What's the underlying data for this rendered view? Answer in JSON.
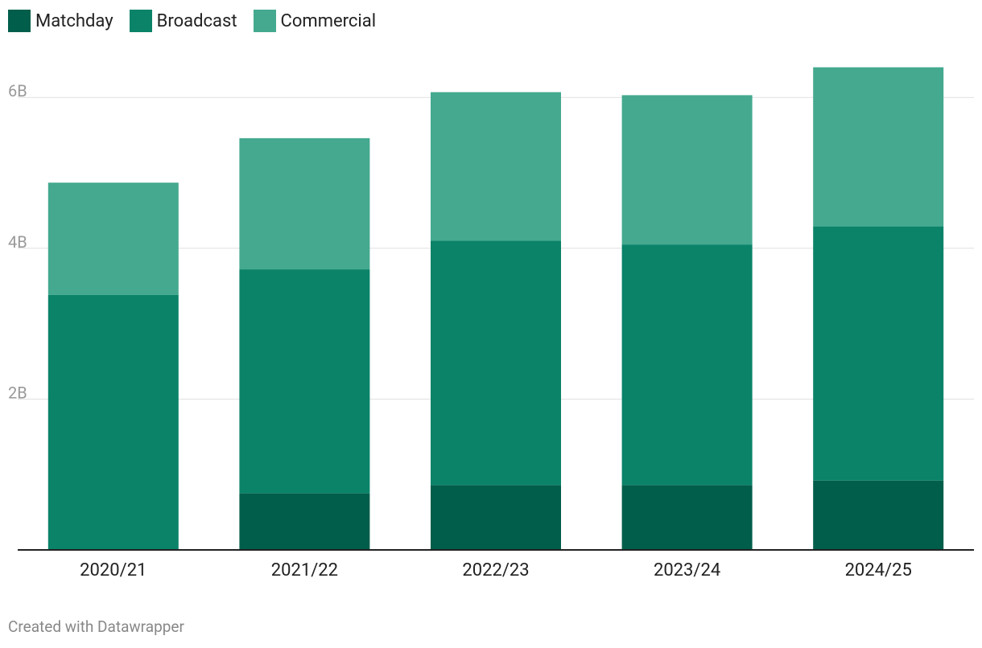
{
  "chart_data": {
    "type": "bar",
    "stacked": true,
    "categories": [
      "2020/21",
      "2021/22",
      "2022/23",
      "2023/24",
      "2024/25"
    ],
    "series": [
      {
        "name": "Matchday",
        "color": "#005e4a",
        "values": [
          0.0,
          0.75,
          0.86,
          0.86,
          0.92
        ]
      },
      {
        "name": "Broadcast",
        "color": "#0a8369",
        "values": [
          3.38,
          2.97,
          3.24,
          3.19,
          3.37
        ]
      },
      {
        "name": "Commercial",
        "color": "#44a98f",
        "values": [
          1.49,
          1.74,
          1.97,
          1.98,
          2.11
        ]
      }
    ],
    "yticks": [
      {
        "value": 2,
        "label": "2B"
      },
      {
        "value": 4,
        "label": "4B"
      },
      {
        "value": 6,
        "label": "6B"
      }
    ],
    "ylim": [
      0,
      6.6
    ],
    "grid": true,
    "legend_position": "top-left"
  },
  "footer": "Created with Datawrapper"
}
